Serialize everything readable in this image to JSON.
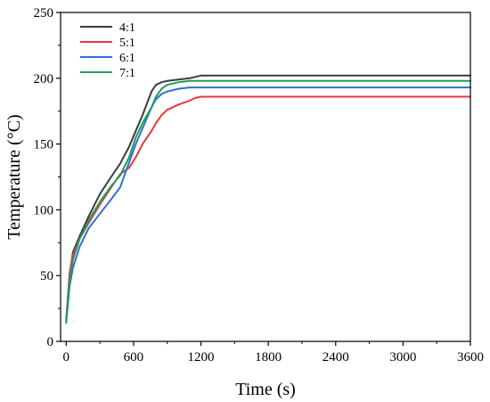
{
  "chart_data": {
    "type": "line",
    "title": "",
    "xlabel": "Time (s)",
    "ylabel": "Temperature (°C)",
    "xlim": [
      -50,
      3600
    ],
    "ylim": [
      0,
      250
    ],
    "xticks": [
      0,
      600,
      1200,
      1800,
      2400,
      3000,
      3600
    ],
    "yticks": [
      0,
      50,
      100,
      150,
      200,
      250
    ],
    "grid": false,
    "legend_position": "top-left",
    "series": [
      {
        "name": "4:1",
        "color": "#3c3c3c",
        "x": [
          0,
          30,
          60,
          120,
          200,
          300,
          400,
          480,
          560,
          620,
          680,
          760,
          800,
          850,
          900,
          1000,
          1100,
          1150,
          1200,
          1250,
          1800,
          2400,
          3000,
          3600
        ],
        "y": [
          16,
          50,
          68,
          80,
          95,
          112,
          125,
          135,
          148,
          160,
          172,
          190,
          195,
          197,
          198,
          199,
          200,
          201,
          202,
          202,
          202,
          202,
          202,
          202
        ]
      },
      {
        "name": "5:1",
        "color": "#e8383c",
        "x": [
          0,
          30,
          60,
          120,
          200,
          300,
          400,
          480,
          560,
          620,
          680,
          760,
          800,
          850,
          900,
          1000,
          1100,
          1150,
          1200,
          1800,
          2400,
          3000,
          3600
        ],
        "y": [
          16,
          52,
          66,
          78,
          90,
          104,
          117,
          127,
          132,
          140,
          150,
          160,
          166,
          172,
          176,
          180,
          183,
          185,
          186,
          186,
          186,
          186,
          186
        ]
      },
      {
        "name": "6:1",
        "color": "#2f6fd6",
        "x": [
          0,
          30,
          60,
          120,
          200,
          300,
          400,
          480,
          560,
          620,
          680,
          760,
          800,
          850,
          900,
          1000,
          1100,
          1200,
          1800,
          2400,
          3000,
          3600
        ],
        "y": [
          14,
          42,
          56,
          72,
          86,
          97,
          108,
          117,
          136,
          150,
          162,
          178,
          184,
          188,
          190,
          192,
          193,
          193,
          193,
          193,
          193,
          193
        ]
      },
      {
        "name": "7:1",
        "color": "#1e9e5c",
        "x": [
          0,
          30,
          60,
          120,
          200,
          300,
          400,
          480,
          560,
          620,
          680,
          760,
          800,
          850,
          900,
          1000,
          1100,
          1200,
          1800,
          2400,
          3000,
          3600
        ],
        "y": [
          15,
          46,
          62,
          78,
          92,
          106,
          118,
          126,
          140,
          155,
          166,
          178,
          186,
          192,
          195,
          197,
          198,
          198,
          198,
          198,
          198,
          198
        ]
      }
    ]
  }
}
